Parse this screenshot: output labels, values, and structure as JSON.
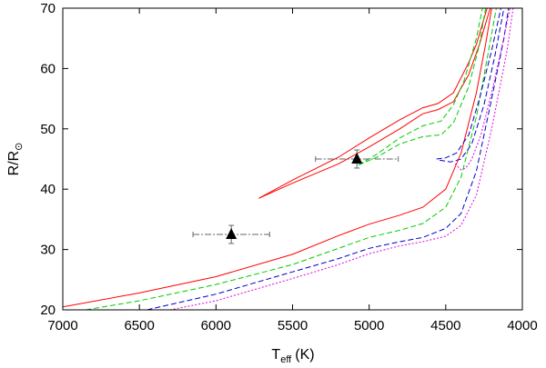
{
  "chart_data": {
    "type": "line",
    "xlabel": "T",
    "xlabel_sub": "eff",
    "xlabel_unit": "(K)",
    "ylabel": "R/R",
    "ylabel_sub": "⊙",
    "xlim": [
      7000,
      4000
    ],
    "ylim": [
      20,
      70
    ],
    "x_inverted": true,
    "xticks": [
      7000,
      6500,
      6000,
      5500,
      5000,
      4500,
      4000
    ],
    "xtick_labels": [
      "7000",
      "6500",
      "6000",
      "5500",
      "5000",
      "4500",
      "4000"
    ],
    "yticks": [
      20,
      30,
      40,
      50,
      60,
      70
    ],
    "ytick_labels": [
      "20",
      "30",
      "40",
      "50",
      "60",
      "70"
    ],
    "grid": false,
    "colors": {
      "red": "#ff0000",
      "green": "#00cc00",
      "blue": "#0000cc",
      "magenta": "#e000e0",
      "errorbar": "#666666",
      "marker": "#000000"
    },
    "series": [
      {
        "color": "red",
        "style": "solid",
        "points": [
          [
            5720,
            38.5
          ],
          [
            5500,
            41.5
          ],
          [
            5200,
            45.3
          ],
          [
            5000,
            48.5
          ],
          [
            4800,
            51.5
          ],
          [
            4650,
            53.5
          ],
          [
            4550,
            54.2
          ],
          [
            4450,
            56
          ],
          [
            4350,
            61
          ],
          [
            4300,
            64
          ],
          [
            4230,
            70
          ]
        ]
      },
      {
        "color": "red",
        "style": "solid",
        "points": [
          [
            5720,
            38.5
          ],
          [
            5500,
            41
          ],
          [
            5200,
            44.2
          ],
          [
            5000,
            47
          ],
          [
            4800,
            50
          ],
          [
            4650,
            52.5
          ],
          [
            4550,
            53.2
          ],
          [
            4450,
            54.5
          ],
          [
            4350,
            59
          ],
          [
            4280,
            64
          ],
          [
            4210,
            70
          ]
        ]
      },
      {
        "color": "red",
        "style": "solid",
        "points": [
          [
            7000,
            20.5
          ],
          [
            6500,
            22.8
          ],
          [
            6000,
            25.5
          ],
          [
            5500,
            29.2
          ],
          [
            5200,
            32.3
          ],
          [
            5000,
            34.2
          ],
          [
            4800,
            35.7
          ],
          [
            4650,
            37
          ],
          [
            4500,
            40
          ],
          [
            4400,
            46
          ],
          [
            4300,
            56
          ],
          [
            4240,
            64
          ],
          [
            4200,
            70
          ]
        ]
      },
      {
        "color": "green",
        "style": "dashed",
        "points": [
          [
            5070,
            44
          ],
          [
            4950,
            45.8
          ],
          [
            4800,
            48.5
          ],
          [
            4650,
            50.5
          ],
          [
            4530,
            51.3
          ],
          [
            4450,
            54
          ],
          [
            4380,
            58
          ],
          [
            4300,
            65
          ],
          [
            4260,
            70
          ]
        ]
      },
      {
        "color": "green",
        "style": "dashed",
        "points": [
          [
            5070,
            44
          ],
          [
            4950,
            45.3
          ],
          [
            4800,
            47.5
          ],
          [
            4650,
            48.7
          ],
          [
            4530,
            49
          ],
          [
            4450,
            51
          ],
          [
            4350,
            57
          ],
          [
            4280,
            64
          ],
          [
            4240,
            70
          ]
        ]
      },
      {
        "color": "green",
        "style": "dashed",
        "points": [
          [
            6850,
            20
          ],
          [
            6500,
            21.5
          ],
          [
            6000,
            24.2
          ],
          [
            5500,
            27.5
          ],
          [
            5200,
            30.2
          ],
          [
            5000,
            32
          ],
          [
            4800,
            33.2
          ],
          [
            4650,
            34.3
          ],
          [
            4500,
            37
          ],
          [
            4400,
            42
          ],
          [
            4300,
            52
          ],
          [
            4220,
            63
          ],
          [
            4170,
            70
          ]
        ]
      },
      {
        "color": "blue",
        "style": "dashed",
        "points": [
          [
            4560,
            45
          ],
          [
            4500,
            45.2
          ],
          [
            4430,
            46
          ],
          [
            4350,
            49
          ],
          [
            4280,
            55
          ],
          [
            4200,
            63
          ],
          [
            4140,
            70
          ]
        ]
      },
      {
        "color": "blue",
        "style": "dashed",
        "points": [
          [
            4540,
            44.8
          ],
          [
            4470,
            44.5
          ],
          [
            4400,
            45
          ],
          [
            4330,
            47.5
          ],
          [
            4250,
            54
          ],
          [
            4180,
            62
          ],
          [
            4120,
            70
          ]
        ]
      },
      {
        "color": "blue",
        "style": "dashed",
        "points": [
          [
            6450,
            20
          ],
          [
            6000,
            22.6
          ],
          [
            5500,
            26.3
          ],
          [
            5200,
            28.5
          ],
          [
            5000,
            30.2
          ],
          [
            4800,
            31.3
          ],
          [
            4650,
            32
          ],
          [
            4500,
            33.5
          ],
          [
            4400,
            36
          ],
          [
            4300,
            43
          ],
          [
            4200,
            55
          ],
          [
            4120,
            65
          ],
          [
            4090,
            70
          ]
        ]
      },
      {
        "color": "magenta",
        "style": "dotted",
        "points": [
          [
            4440,
            44.2
          ],
          [
            4400,
            43.2
          ],
          [
            4370,
            43.5
          ],
          [
            4330,
            45
          ],
          [
            4270,
            49
          ],
          [
            4200,
            56
          ],
          [
            4130,
            64
          ],
          [
            4080,
            70
          ]
        ]
      },
      {
        "color": "magenta",
        "style": "dotted",
        "points": [
          [
            6300,
            20
          ],
          [
            6000,
            21.5
          ],
          [
            5500,
            25.2
          ],
          [
            5200,
            27.5
          ],
          [
            5000,
            29.3
          ],
          [
            4800,
            30.6
          ],
          [
            4650,
            31.3
          ],
          [
            4500,
            32.2
          ],
          [
            4400,
            34
          ],
          [
            4300,
            39
          ],
          [
            4200,
            50
          ],
          [
            4100,
            63
          ],
          [
            4060,
            70
          ]
        ]
      }
    ],
    "points_with_errors": [
      {
        "x": 5900,
        "y": 32.5,
        "xerr": 250,
        "yerr": 1.5
      },
      {
        "x": 5080,
        "y": 45,
        "xerr": 270,
        "yerr": 1.5
      }
    ]
  }
}
